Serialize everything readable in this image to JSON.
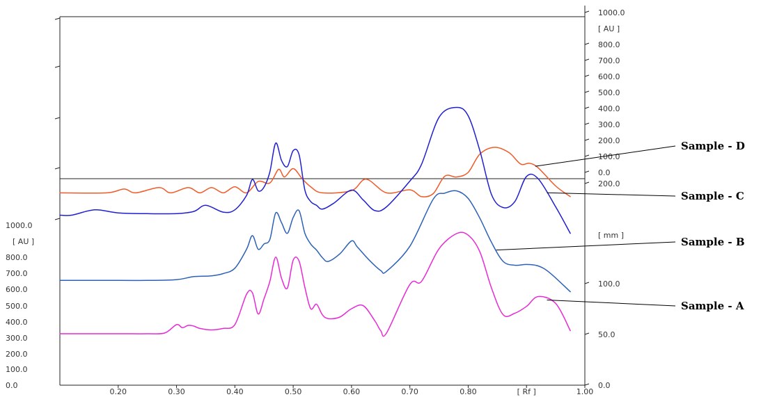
{
  "chart_data": {
    "type": "line",
    "xlabel": "[ Rf ]",
    "xlim": [
      0.1,
      1.0
    ],
    "x_ticks": [
      "0.20",
      "0.30",
      "0.40",
      "0.50",
      "0.60",
      "0.70",
      "0.80",
      "[ Rf ]",
      "1.00"
    ],
    "left_axis": {
      "unit": "[ AU ]",
      "ylim": [
        0,
        1000
      ],
      "ticks": [
        "0.0",
        "100.0",
        "200.0",
        "300.0",
        "400.0",
        "500.0",
        "600.0",
        "700.0",
        "800.0",
        "1000.0"
      ]
    },
    "right_axis_upper": {
      "unit": "[ AU ]",
      "ticks": [
        "1000.0",
        "800.0",
        "700.0",
        "600.0",
        "500.0",
        "400.0",
        "300.0",
        "200.0",
        "100.0",
        "0.0",
        "200.0"
      ]
    },
    "right_axis_lower": {
      "unit": "[ mm ]",
      "ticks": [
        "100.0",
        "50.0",
        "0.0"
      ]
    },
    "series": [
      {
        "name": "Sample - D",
        "color": "#f05a28",
        "x": [
          0.1,
          0.18,
          0.21,
          0.23,
          0.27,
          0.29,
          0.32,
          0.34,
          0.36,
          0.38,
          0.4,
          0.42,
          0.44,
          0.46,
          0.475,
          0.485,
          0.5,
          0.515,
          0.53,
          0.55,
          0.6,
          0.625,
          0.66,
          0.7,
          0.72,
          0.74,
          0.76,
          0.78,
          0.8,
          0.82,
          0.845,
          0.87,
          0.89,
          0.905,
          0.92,
          0.95,
          0.975
        ],
        "y": [
          35,
          35,
          60,
          35,
          70,
          35,
          70,
          35,
          70,
          35,
          75,
          35,
          110,
          100,
          190,
          140,
          195,
          130,
          75,
          35,
          50,
          125,
          35,
          55,
          10,
          30,
          145,
          140,
          170,
          290,
          335,
          300,
          225,
          230,
          200,
          80,
          10
        ]
      },
      {
        "name": "Sample - C",
        "color": "#1f1fd0",
        "x": [
          0.1,
          0.12,
          0.16,
          0.2,
          0.25,
          0.3,
          0.33,
          0.35,
          0.38,
          0.4,
          0.42,
          0.43,
          0.44,
          0.45,
          0.46,
          0.47,
          0.48,
          0.49,
          0.5,
          0.51,
          0.52,
          0.53,
          0.54,
          0.55,
          0.57,
          0.6,
          0.62,
          0.64,
          0.66,
          0.7,
          0.72,
          0.75,
          0.78,
          0.8,
          0.82,
          0.84,
          0.86,
          0.88,
          0.9,
          0.92,
          0.95,
          0.975
        ],
        "y": [
          140,
          140,
          175,
          155,
          150,
          150,
          165,
          205,
          160,
          175,
          270,
          375,
          300,
          325,
          425,
          615,
          500,
          460,
          565,
          540,
          305,
          230,
          205,
          180,
          220,
          305,
          240,
          170,
          195,
          365,
          475,
          785,
          850,
          795,
          565,
          275,
          190,
          230,
          395,
          380,
          195,
          20
        ]
      },
      {
        "name": "Sample - B",
        "color": "#2b60b8",
        "x": [
          0.1,
          0.2,
          0.25,
          0.3,
          0.33,
          0.36,
          0.38,
          0.4,
          0.42,
          0.43,
          0.44,
          0.45,
          0.46,
          0.47,
          0.48,
          0.49,
          0.5,
          0.51,
          0.52,
          0.53,
          0.54,
          0.55,
          0.56,
          0.58,
          0.6,
          0.61,
          0.63,
          0.65,
          0.66,
          0.7,
          0.74,
          0.76,
          0.78,
          0.8,
          0.82,
          0.84,
          0.86,
          0.88,
          0.9,
          0.92,
          0.94,
          0.975
        ],
        "y": [
          40,
          40,
          40,
          45,
          65,
          70,
          85,
          120,
          245,
          335,
          245,
          280,
          310,
          485,
          420,
          350,
          455,
          500,
          350,
          280,
          240,
          190,
          165,
          215,
          300,
          260,
          175,
          105,
          100,
          265,
          575,
          615,
          630,
          580,
          450,
          290,
          165,
          140,
          145,
          135,
          90,
          -35
        ]
      },
      {
        "name": "Sample - A",
        "color": "#e62ad6",
        "x": [
          0.1,
          0.2,
          0.25,
          0.28,
          0.3,
          0.31,
          0.32,
          0.33,
          0.34,
          0.36,
          0.38,
          0.4,
          0.42,
          0.43,
          0.44,
          0.45,
          0.46,
          0.47,
          0.48,
          0.49,
          0.5,
          0.51,
          0.52,
          0.53,
          0.54,
          0.55,
          0.56,
          0.58,
          0.6,
          0.62,
          0.64,
          0.65,
          0.66,
          0.7,
          0.72,
          0.75,
          0.78,
          0.8,
          0.82,
          0.84,
          0.86,
          0.88,
          0.9,
          0.92,
          0.95,
          0.975
        ],
        "y": [
          0,
          0,
          0,
          5,
          60,
          40,
          55,
          50,
          35,
          25,
          35,
          60,
          260,
          270,
          130,
          230,
          345,
          505,
          365,
          300,
          485,
          480,
          305,
          165,
          195,
          125,
          100,
          110,
          165,
          185,
          85,
          20,
          5,
          325,
          345,
          560,
          660,
          650,
          540,
          300,
          125,
          135,
          180,
          245,
          200,
          20
        ]
      }
    ]
  },
  "colors": {
    "frame": "#222222",
    "text": "#333333",
    "leader": "#000000"
  }
}
